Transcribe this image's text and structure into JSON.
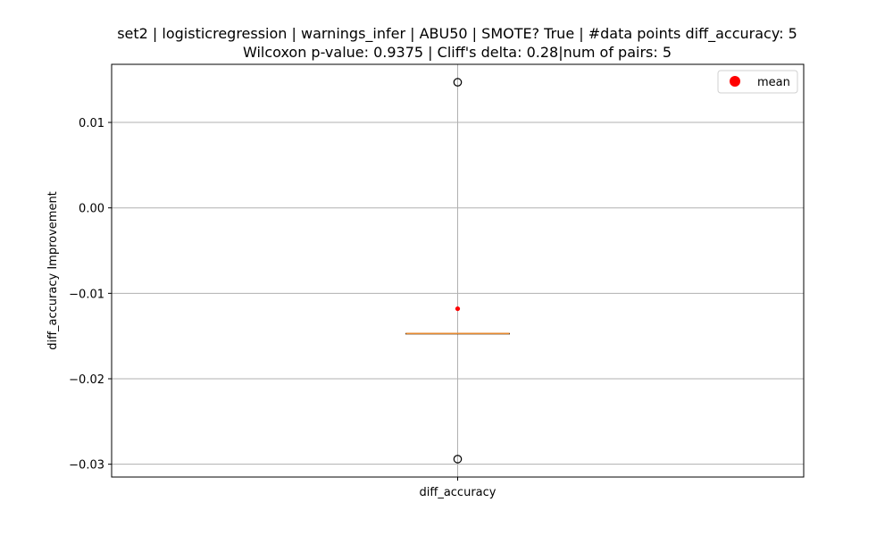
{
  "chart_data": {
    "type": "box",
    "title_line1": "set2 | logisticregression | warnings_infer | ABU50 | SMOTE? True | #data points diff_accuracy: 5",
    "title_line2": "Wilcoxon p-value: 0.9375 | Cliff's delta: 0.28|num of pairs: 5",
    "xlabel": "",
    "ylabel": "diff_accuracy Improvement",
    "categories": [
      "diff_accuracy"
    ],
    "ylim": [
      -0.0315,
      0.0168
    ],
    "yticks": [
      0.01,
      0.0,
      -0.01,
      -0.02,
      -0.03
    ],
    "ytick_labels": [
      "0.01",
      "0.00",
      "−0.01",
      "−0.02",
      "−0.03"
    ],
    "grid": true,
    "box": {
      "q1": -0.0147,
      "median": -0.0147,
      "q3": -0.0147,
      "whisker_low": -0.0147,
      "whisker_high": -0.0147,
      "outliers": [
        0.0147,
        -0.0294
      ],
      "mean": -0.0118
    },
    "legend": {
      "placement": "top-right",
      "entries": [
        {
          "label": "mean",
          "color": "#ff0000"
        }
      ]
    },
    "colors": {
      "median": "#e6892f",
      "mean": "#ff0000",
      "grid": "#b0b0b0"
    }
  }
}
